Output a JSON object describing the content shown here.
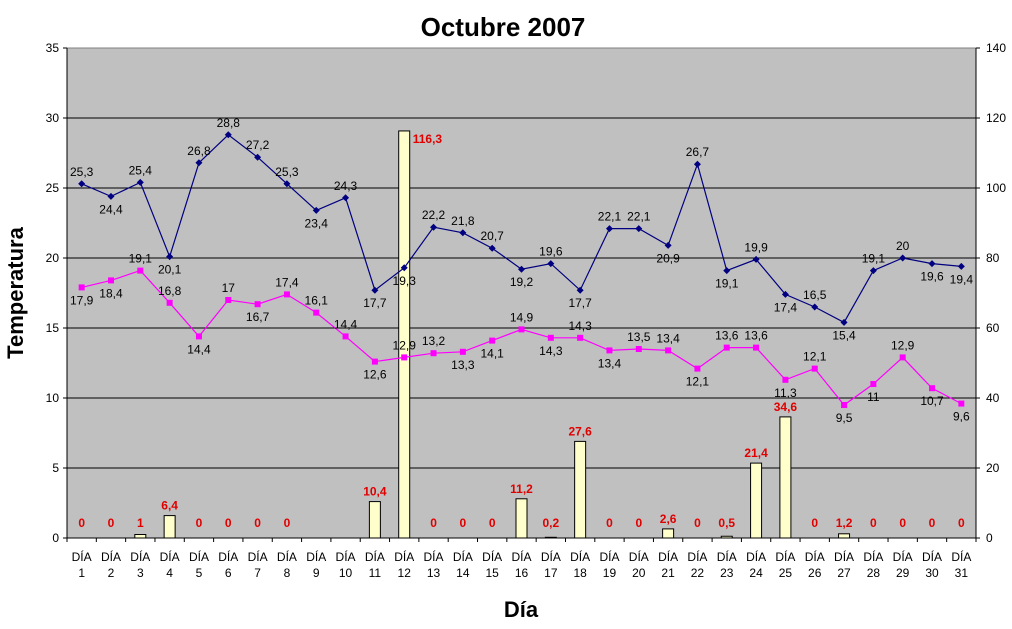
{
  "chart_data": {
    "type": "bar+line",
    "title": "Octubre 2007",
    "xlabel": "Día",
    "ylabel": "Temperatura",
    "ylim": [
      0,
      35
    ],
    "y_ticks": [
      0,
      5,
      10,
      15,
      20,
      25,
      30,
      35
    ],
    "y2lim": [
      0,
      140
    ],
    "y2_ticks": [
      0,
      20,
      40,
      60,
      80,
      100,
      120,
      140
    ],
    "grid": "horizontal",
    "colors": {
      "max": "#000080",
      "min": "#ff00ff",
      "bar_fill": "#ffffcc",
      "bar_stroke": "#000000",
      "rain_label": "#e00000",
      "plot_bg": "#c0c0c0"
    },
    "categories": [
      [
        "DÍA",
        "1"
      ],
      [
        "DÍA",
        "2"
      ],
      [
        "DÍA",
        "3"
      ],
      [
        "DÍA",
        "4"
      ],
      [
        "DÍA",
        "5"
      ],
      [
        "DÍA",
        "6"
      ],
      [
        "DÍA",
        "7"
      ],
      [
        "DÍA",
        "8"
      ],
      [
        "DÍA",
        "9"
      ],
      [
        "DÍA",
        "10"
      ],
      [
        "DÍA",
        "11"
      ],
      [
        "DÍA",
        "12"
      ],
      [
        "DÍA",
        "13"
      ],
      [
        "DÍA",
        "14"
      ],
      [
        "DÍA",
        "15"
      ],
      [
        "DÍA",
        "16"
      ],
      [
        "DÍA",
        "17"
      ],
      [
        "DÍA",
        "18"
      ],
      [
        "DÍA",
        "19"
      ],
      [
        "DÍA",
        "20"
      ],
      [
        "DÍA",
        "21"
      ],
      [
        "DÍA",
        "22"
      ],
      [
        "DÍA",
        "23"
      ],
      [
        "DÍA",
        "24"
      ],
      [
        "DÍA",
        "25"
      ],
      [
        "DÍA",
        "26"
      ],
      [
        "DÍA",
        "27"
      ],
      [
        "DÍA",
        "28"
      ],
      [
        "DÍA",
        "29"
      ],
      [
        "DÍA",
        "30"
      ],
      [
        "DÍA",
        "31"
      ]
    ],
    "series": [
      {
        "key": "max",
        "chart": "line",
        "axis": "left",
        "values": [
          25.3,
          24.4,
          25.4,
          20.1,
          26.8,
          28.8,
          27.2,
          25.3,
          23.4,
          24.3,
          17.7,
          19.3,
          22.2,
          21.8,
          20.7,
          19.2,
          19.6,
          17.7,
          22.1,
          22.1,
          20.9,
          26.7,
          19.1,
          19.9,
          17.4,
          16.5,
          15.4,
          19.1,
          20,
          19.6,
          19.4
        ],
        "labels": [
          "25,3",
          "24,4",
          "25,4",
          "20,1",
          "26,8",
          "28,8",
          "27,2",
          "25,3",
          "23,4",
          "24,3",
          "17,7",
          "19,3",
          "22,2",
          "21,8",
          "20,7",
          "19,2",
          "19,6",
          "17,7",
          "22,1",
          "22,1",
          "20,9",
          "26,7",
          "19,1",
          "19,9",
          "17,4",
          "16,5",
          "15,4",
          "19,1",
          "20",
          "19,6",
          "19,4"
        ]
      },
      {
        "key": "min",
        "chart": "line",
        "axis": "left",
        "values": [
          17.9,
          18.4,
          19.1,
          16.8,
          14.4,
          17,
          16.7,
          17.4,
          16.1,
          14.4,
          12.6,
          12.9,
          13.2,
          13.3,
          14.1,
          14.9,
          14.3,
          14.3,
          13.4,
          13.5,
          13.4,
          12.1,
          13.6,
          13.6,
          11.3,
          12.1,
          9.5,
          11,
          12.9,
          10.7,
          9.6
        ],
        "labels": [
          "17,9",
          "18,4",
          "19,1",
          "16,8",
          "14,4",
          "17",
          "16,7",
          "17,4",
          "16,1",
          "14,4",
          "12,6",
          "12,9",
          "13,2",
          "13,3",
          "14,1",
          "14,9",
          "14,3",
          "14,3",
          "13,4",
          "13,5",
          "13,4",
          "12,1",
          "13,6",
          "13,6",
          "11,3",
          "12,1",
          "9,5",
          "11",
          "12,9",
          "10,7",
          "9,6"
        ]
      },
      {
        "key": "rain",
        "chart": "bar",
        "axis": "right",
        "values": [
          0,
          0,
          1,
          6.4,
          0,
          0,
          0,
          0,
          null,
          null,
          10.4,
          116.3,
          0,
          0,
          0,
          11.2,
          0.2,
          27.6,
          0,
          0,
          2.6,
          0,
          0.5,
          21.4,
          34.6,
          0,
          1.2,
          0,
          0,
          0,
          0
        ],
        "labels": [
          "0",
          "0",
          "1",
          "6,4",
          "0",
          "0",
          "0",
          "0",
          "",
          "",
          "10,4",
          "116,3",
          "0",
          "0",
          "0",
          "11,2",
          "0,2",
          "27,6",
          "0",
          "0",
          "2,6",
          "0",
          "0,5",
          "21,4",
          "34,6",
          "0",
          "1,2",
          "0",
          "0",
          "0",
          "0"
        ]
      }
    ]
  }
}
